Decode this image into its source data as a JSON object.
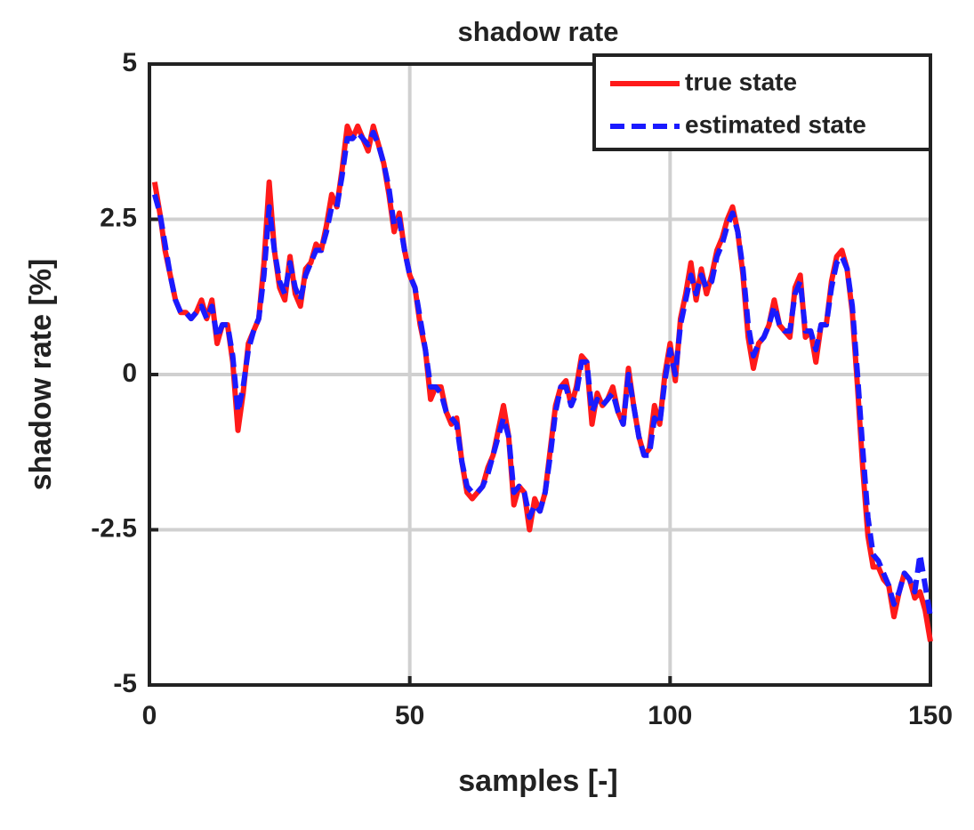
{
  "chart_data": {
    "type": "line",
    "title": "shadow rate",
    "xlabel": "samples [-]",
    "ylabel": "shadow rate [%]",
    "x": [
      1,
      2,
      3,
      4,
      5,
      6,
      7,
      8,
      9,
      10,
      11,
      12,
      13,
      14,
      15,
      16,
      17,
      18,
      19,
      20,
      21,
      22,
      23,
      24,
      25,
      26,
      27,
      28,
      29,
      30,
      31,
      32,
      33,
      34,
      35,
      36,
      37,
      38,
      39,
      40,
      41,
      42,
      43,
      44,
      45,
      46,
      47,
      48,
      49,
      50,
      51,
      52,
      53,
      54,
      55,
      56,
      57,
      58,
      59,
      60,
      61,
      62,
      63,
      64,
      65,
      66,
      67,
      68,
      69,
      70,
      71,
      72,
      73,
      74,
      75,
      76,
      77,
      78,
      79,
      80,
      81,
      82,
      83,
      84,
      85,
      86,
      87,
      88,
      89,
      90,
      91,
      92,
      93,
      94,
      95,
      96,
      97,
      98,
      99,
      100,
      101,
      102,
      103,
      104,
      105,
      106,
      107,
      108,
      109,
      110,
      111,
      112,
      113,
      114,
      115,
      116,
      117,
      118,
      119,
      120,
      121,
      122,
      123,
      124,
      125,
      126,
      127,
      128,
      129,
      130,
      131,
      132,
      133,
      134,
      135,
      136,
      137,
      138,
      139,
      140,
      141,
      142,
      143,
      144,
      145,
      146,
      147,
      148,
      149,
      150
    ],
    "series": [
      {
        "name": "true state",
        "color": "#ff1a1a",
        "dash": false,
        "values": [
          3.1,
          2.6,
          2.0,
          1.6,
          1.2,
          1.0,
          1.0,
          0.9,
          1.0,
          1.2,
          0.9,
          1.2,
          0.5,
          0.8,
          0.8,
          0.2,
          -0.9,
          -0.3,
          0.5,
          0.7,
          0.9,
          1.8,
          3.1,
          2.0,
          1.4,
          1.2,
          1.9,
          1.3,
          1.1,
          1.7,
          1.8,
          2.1,
          2.0,
          2.4,
          2.9,
          2.7,
          3.3,
          4.0,
          3.8,
          4.0,
          3.8,
          3.6,
          4.0,
          3.7,
          3.4,
          2.9,
          2.3,
          2.6,
          2.0,
          1.6,
          1.4,
          0.8,
          0.4,
          -0.4,
          -0.2,
          -0.2,
          -0.6,
          -0.8,
          -0.7,
          -1.4,
          -1.9,
          -2.0,
          -1.9,
          -1.8,
          -1.5,
          -1.3,
          -0.9,
          -0.5,
          -1.0,
          -2.1,
          -1.8,
          -1.9,
          -2.5,
          -2.0,
          -2.2,
          -1.9,
          -1.2,
          -0.5,
          -0.2,
          -0.1,
          -0.5,
          -0.2,
          0.3,
          0.2,
          -0.8,
          -0.3,
          -0.5,
          -0.4,
          -0.2,
          -0.6,
          -0.8,
          0.1,
          -0.5,
          -1.0,
          -1.3,
          -1.2,
          -0.5,
          -0.8,
          0.0,
          0.5,
          -0.1,
          0.9,
          1.3,
          1.8,
          1.2,
          1.7,
          1.3,
          1.6,
          2.0,
          2.2,
          2.5,
          2.7,
          2.3,
          1.6,
          0.6,
          0.1,
          0.5,
          0.6,
          0.8,
          1.2,
          0.8,
          0.7,
          0.6,
          1.4,
          1.6,
          0.6,
          0.7,
          0.2,
          0.8,
          0.8,
          1.5,
          1.9,
          2.0,
          1.7,
          1.0,
          -0.2,
          -1.5,
          -2.6,
          -3.1,
          -3.1,
          -3.3,
          -3.4,
          -3.9,
          -3.5,
          -3.2,
          -3.3,
          -3.6,
          -3.5,
          -3.8,
          -4.3
        ]
      },
      {
        "name": "estimated state",
        "color": "#1a1aff",
        "dash": true,
        "values": [
          2.9,
          2.6,
          2.1,
          1.6,
          1.2,
          1.0,
          1.0,
          0.9,
          1.0,
          1.1,
          0.9,
          1.1,
          0.6,
          0.8,
          0.8,
          0.3,
          -0.6,
          -0.2,
          0.4,
          0.7,
          0.9,
          1.6,
          2.7,
          2.0,
          1.5,
          1.3,
          1.8,
          1.4,
          1.2,
          1.6,
          1.8,
          2.0,
          2.0,
          2.3,
          2.7,
          2.7,
          3.2,
          3.8,
          3.8,
          3.9,
          3.8,
          3.7,
          3.9,
          3.7,
          3.4,
          3.0,
          2.4,
          2.5,
          2.0,
          1.6,
          1.4,
          0.9,
          0.4,
          -0.2,
          -0.2,
          -0.3,
          -0.6,
          -0.7,
          -0.8,
          -1.4,
          -1.8,
          -1.9,
          -1.9,
          -1.8,
          -1.6,
          -1.3,
          -1.0,
          -0.7,
          -1.0,
          -1.9,
          -1.8,
          -1.9,
          -2.3,
          -2.1,
          -2.2,
          -1.9,
          -1.3,
          -0.6,
          -0.2,
          -0.2,
          -0.5,
          -0.3,
          0.2,
          0.2,
          -0.6,
          -0.4,
          -0.5,
          -0.4,
          -0.3,
          -0.6,
          -0.8,
          0.0,
          -0.5,
          -1.0,
          -1.3,
          -1.3,
          -0.7,
          -0.8,
          -0.1,
          0.4,
          0.0,
          0.8,
          1.2,
          1.6,
          1.3,
          1.6,
          1.4,
          1.5,
          1.9,
          2.1,
          2.4,
          2.6,
          2.3,
          1.7,
          0.8,
          0.3,
          0.5,
          0.6,
          0.8,
          1.1,
          0.8,
          0.7,
          0.7,
          1.3,
          1.5,
          0.7,
          0.7,
          0.4,
          0.8,
          0.8,
          1.4,
          1.8,
          1.9,
          1.7,
          1.1,
          0.0,
          -1.2,
          -2.3,
          -2.9,
          -3.0,
          -3.2,
          -3.4,
          -3.7,
          -3.5,
          -3.2,
          -3.3,
          -3.5,
          -2.9,
          -3.4,
          -3.9
        ]
      }
    ],
    "xlim": [
      0,
      150
    ],
    "ylim": [
      -5,
      5
    ],
    "xticks": [
      0,
      50,
      100,
      150
    ],
    "yticks": [
      -5,
      -2.5,
      0,
      2.5,
      5
    ],
    "grid": true,
    "legend": "northeast"
  }
}
